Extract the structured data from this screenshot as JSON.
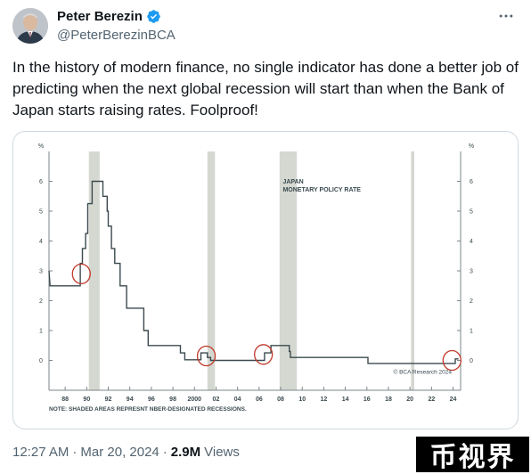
{
  "author": {
    "name": "Peter Berezin",
    "handle": "@PeterBerezinBCA"
  },
  "tweet": {
    "text": "In the history of modern finance, no single indicator has done a better job of predicting when the next global recession will start than when the Bank of Japan starts raising rates. Foolproof!"
  },
  "meta": {
    "time": "12:27 AM",
    "date": "Mar 20, 2024",
    "views_count": "2.9M",
    "views_label": "Views"
  },
  "watermark": "币视界",
  "icons": {
    "verified": "verified-badge-icon",
    "more": "more-options-icon"
  },
  "colors": {
    "verified": "#1d9bf0",
    "recession_shade": "#d4d8d0",
    "line": "#3b4a4f",
    "circle": "#c0392b"
  },
  "chart_data": {
    "type": "line",
    "title": "JAPAN\nMONETARY POLICY RATE",
    "y_unit": "%",
    "xlim": [
      1986.5,
      2024.7
    ],
    "ylim": [
      -1,
      7
    ],
    "y_ticks": [
      0,
      1,
      2,
      3,
      4,
      5,
      6
    ],
    "x_ticks": [
      {
        "label": "88",
        "x": 1988
      },
      {
        "label": "90",
        "x": 1990
      },
      {
        "label": "92",
        "x": 1992
      },
      {
        "label": "94",
        "x": 1994
      },
      {
        "label": "96",
        "x": 1996
      },
      {
        "label": "98",
        "x": 1998
      },
      {
        "label": "2000",
        "x": 2000
      },
      {
        "label": "02",
        "x": 2002
      },
      {
        "label": "04",
        "x": 2004
      },
      {
        "label": "06",
        "x": 2006
      },
      {
        "label": "08",
        "x": 2008
      },
      {
        "label": "10",
        "x": 2010
      },
      {
        "label": "12",
        "x": 2012
      },
      {
        "label": "14",
        "x": 2014
      },
      {
        "label": "16",
        "x": 2016
      },
      {
        "label": "18",
        "x": 2018
      },
      {
        "label": "20",
        "x": 2020
      },
      {
        "label": "22",
        "x": 2022
      },
      {
        "label": "24",
        "x": 2024
      }
    ],
    "recessions": [
      [
        1990.2,
        1991.2
      ],
      [
        2001.2,
        2001.9
      ],
      [
        2007.9,
        2009.5
      ],
      [
        2020.1,
        2020.4
      ]
    ],
    "series": [
      {
        "points": [
          [
            1986.5,
            3.0
          ],
          [
            1986.6,
            2.5
          ],
          [
            1989.4,
            2.5
          ],
          [
            1989.4,
            3.25
          ],
          [
            1989.6,
            3.25
          ],
          [
            1989.6,
            3.75
          ],
          [
            1989.9,
            3.75
          ],
          [
            1989.9,
            4.25
          ],
          [
            1990.1,
            4.25
          ],
          [
            1990.1,
            5.25
          ],
          [
            1990.5,
            5.25
          ],
          [
            1990.5,
            6.0
          ],
          [
            1991.5,
            6.0
          ],
          [
            1991.5,
            5.5
          ],
          [
            1991.9,
            5.5
          ],
          [
            1991.9,
            5.0
          ],
          [
            1992.0,
            5.0
          ],
          [
            1992.0,
            4.5
          ],
          [
            1992.3,
            4.5
          ],
          [
            1992.3,
            3.75
          ],
          [
            1992.6,
            3.75
          ],
          [
            1992.6,
            3.25
          ],
          [
            1993.1,
            3.25
          ],
          [
            1993.1,
            2.5
          ],
          [
            1993.7,
            2.5
          ],
          [
            1993.7,
            1.75
          ],
          [
            1995.3,
            1.75
          ],
          [
            1995.3,
            1.0
          ],
          [
            1995.7,
            1.0
          ],
          [
            1995.7,
            0.5
          ],
          [
            1998.7,
            0.5
          ],
          [
            1998.7,
            0.25
          ],
          [
            1999.1,
            0.25
          ],
          [
            1999.1,
            0.02
          ],
          [
            2000.6,
            0.02
          ],
          [
            2000.6,
            0.25
          ],
          [
            2001.2,
            0.25
          ],
          [
            2001.2,
            0.1
          ],
          [
            2001.5,
            0.1
          ],
          [
            2001.5,
            0.0
          ],
          [
            2006.5,
            0.0
          ],
          [
            2006.5,
            0.25
          ],
          [
            2007.1,
            0.25
          ],
          [
            2007.1,
            0.5
          ],
          [
            2008.8,
            0.5
          ],
          [
            2008.8,
            0.3
          ],
          [
            2008.9,
            0.3
          ],
          [
            2008.9,
            0.1
          ],
          [
            2016.1,
            0.1
          ],
          [
            2016.1,
            -0.1
          ],
          [
            2024.2,
            -0.1
          ],
          [
            2024.2,
            0.05
          ],
          [
            2024.5,
            0.05
          ]
        ]
      }
    ],
    "highlights": [
      {
        "x": 1989.5,
        "y": 2.9
      },
      {
        "x": 2001.1,
        "y": 0.15
      },
      {
        "x": 2006.4,
        "y": 0.2
      },
      {
        "x": 2023.9,
        "y": 0.0
      }
    ],
    "source": "© BCA Research 2024",
    "note": "NOTE: SHADED AREAS REPRESNT NBER-DESIGNATED RECESSIONS."
  }
}
